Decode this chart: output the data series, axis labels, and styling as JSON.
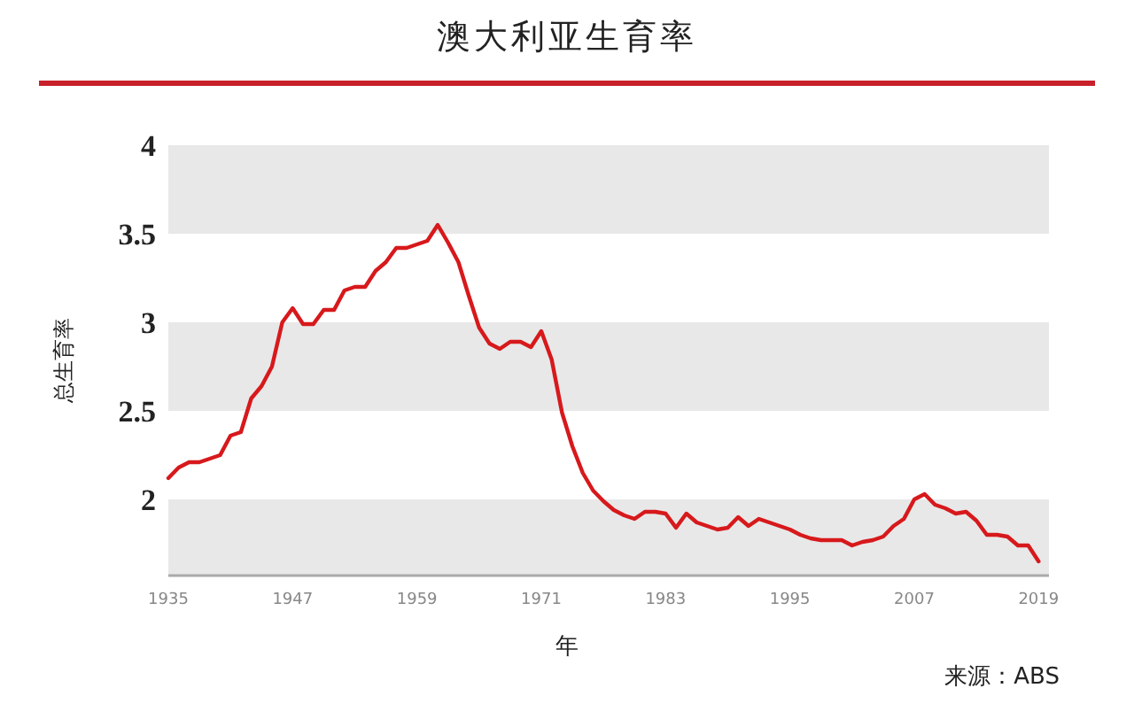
{
  "chart_data": {
    "type": "line",
    "title": "澳大利亚生育率",
    "xlabel": "年",
    "ylabel": "总生育率",
    "annotations": [
      "来源：ABS"
    ],
    "x": [
      1935,
      1936,
      1937,
      1938,
      1939,
      1940,
      1941,
      1942,
      1943,
      1944,
      1945,
      1946,
      1947,
      1948,
      1949,
      1950,
      1951,
      1952,
      1953,
      1954,
      1955,
      1956,
      1957,
      1958,
      1959,
      1960,
      1961,
      1962,
      1963,
      1964,
      1965,
      1966,
      1967,
      1968,
      1969,
      1970,
      1971,
      1972,
      1973,
      1974,
      1975,
      1976,
      1977,
      1978,
      1979,
      1980,
      1981,
      1982,
      1983,
      1984,
      1985,
      1986,
      1987,
      1988,
      1989,
      1990,
      1991,
      1992,
      1993,
      1994,
      1995,
      1996,
      1997,
      1998,
      1999,
      2000,
      2001,
      2002,
      2003,
      2004,
      2005,
      2006,
      2007,
      2008,
      2009,
      2010,
      2011,
      2012,
      2013,
      2014,
      2015,
      2016,
      2017,
      2018,
      2019
    ],
    "series": [
      {
        "color": "#d7191c",
        "values": [
          2.12,
          2.18,
          2.21,
          2.21,
          2.23,
          2.25,
          2.36,
          2.38,
          2.57,
          2.64,
          2.75,
          3.0,
          3.08,
          2.99,
          2.99,
          3.07,
          3.07,
          3.18,
          3.2,
          3.2,
          3.29,
          3.34,
          3.42,
          3.42,
          3.44,
          3.46,
          3.55,
          3.45,
          3.34,
          3.15,
          2.97,
          2.88,
          2.85,
          2.89,
          2.89,
          2.86,
          2.95,
          2.79,
          2.49,
          2.3,
          2.15,
          2.05,
          1.99,
          1.94,
          1.91,
          1.89,
          1.93,
          1.93,
          1.92,
          1.84,
          1.92,
          1.87,
          1.85,
          1.83,
          1.84,
          1.9,
          1.85,
          1.89,
          1.87,
          1.85,
          1.83,
          1.8,
          1.78,
          1.77,
          1.77,
          1.77,
          1.74,
          1.76,
          1.77,
          1.79,
          1.85,
          1.89,
          2.0,
          2.03,
          1.97,
          1.95,
          1.92,
          1.93,
          1.88,
          1.8,
          1.8,
          1.79,
          1.74,
          1.74,
          1.65
        ]
      }
    ],
    "xlim": [
      1935,
      2020
    ],
    "xticks": [
      1935,
      1947,
      1959,
      1971,
      1983,
      1995,
      2007,
      2019
    ],
    "ylim": [
      1.57,
      4
    ],
    "yticks": [
      2,
      2.5,
      3,
      3.5,
      4
    ],
    "line_style": "solid",
    "marker": "none",
    "bands": [
      {
        "axis": "y",
        "from": 1.57,
        "to": 2,
        "color": "#e8e8e8"
      },
      {
        "axis": "y",
        "from": 2.5,
        "to": 3,
        "color": "#e8e8e8"
      },
      {
        "axis": "y",
        "from": 3.5,
        "to": 4,
        "color": "#e8e8e8"
      }
    ]
  }
}
